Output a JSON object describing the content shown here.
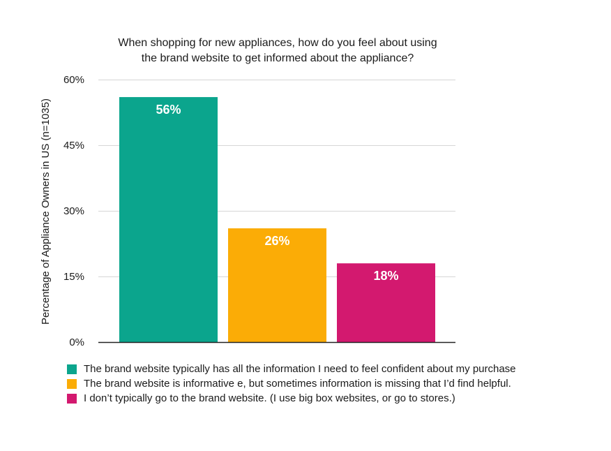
{
  "chart_data": {
    "type": "bar",
    "title_lines": [
      "When shopping for new appliances, how do you feel about using",
      "the brand website to get informed about the appliance?"
    ],
    "ylabel": "Percentage of Appliance Owners in US (n=1035)",
    "xlabel": "",
    "ylim": [
      0,
      60
    ],
    "yticks": [
      0,
      15,
      30,
      45,
      60
    ],
    "ytick_labels": [
      "0%",
      "15%",
      "30%",
      "45%",
      "60%"
    ],
    "grid": true,
    "legend_position": "bottom-left",
    "bars": [
      {
        "value": 56,
        "label": "56%",
        "color": "#0ba58d",
        "legend": "The brand website typically has all the information I need to feel confident about my purchase"
      },
      {
        "value": 26,
        "label": "26%",
        "color": "#fbac06",
        "legend": "The brand website is informative e, but sometimes information is missing that I’d find helpful."
      },
      {
        "value": 18,
        "label": "18%",
        "color": "#d3196f",
        "legend": "I don’t typically go to the brand website. (I use big box websites, or go to stores.)"
      }
    ]
  }
}
